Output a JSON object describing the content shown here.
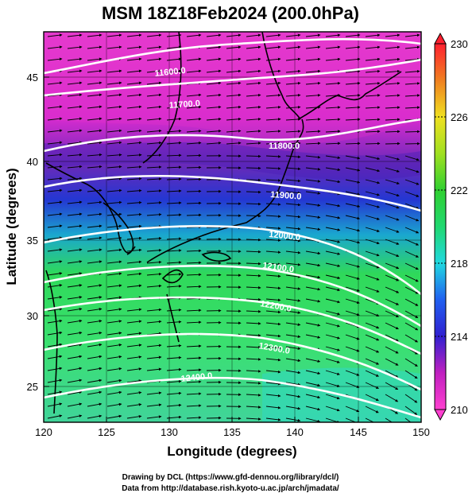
{
  "title": "MSM 18Z18Feb2024 (200.0hPa)",
  "x_axis": {
    "label": "Longitude (degrees)",
    "range": [
      120,
      150
    ],
    "ticks": [
      "120",
      "125",
      "130",
      "135",
      "140",
      "145",
      "150"
    ]
  },
  "y_axis": {
    "label": "Latitude  (degrees)",
    "range": [
      22.5,
      47.5
    ],
    "ticks": [
      "25",
      "30",
      "35",
      "40",
      "45"
    ]
  },
  "colorbar": {
    "range": [
      210,
      230
    ],
    "ticks": [
      "230",
      "226",
      "222",
      "218",
      "214",
      "210"
    ]
  },
  "contour_labels": [
    "11600.0",
    "11700.0",
    "11800.0",
    "11900.0",
    "12000.0",
    "12100.0",
    "12200.0",
    "12300.0",
    "12400.0"
  ],
  "credits": {
    "line1": "Drawing by DCL (https://www.gfd-dennou.org/library/dcl/)",
    "line2": "Data from http://database.rish.kyoto-u.ac.jp/arch/jmadata/"
  },
  "colors": {
    "cold": "#6a1fb8",
    "warm_max": "#ff2030",
    "land_outline": "#000000",
    "contour": "#ffffff"
  }
}
